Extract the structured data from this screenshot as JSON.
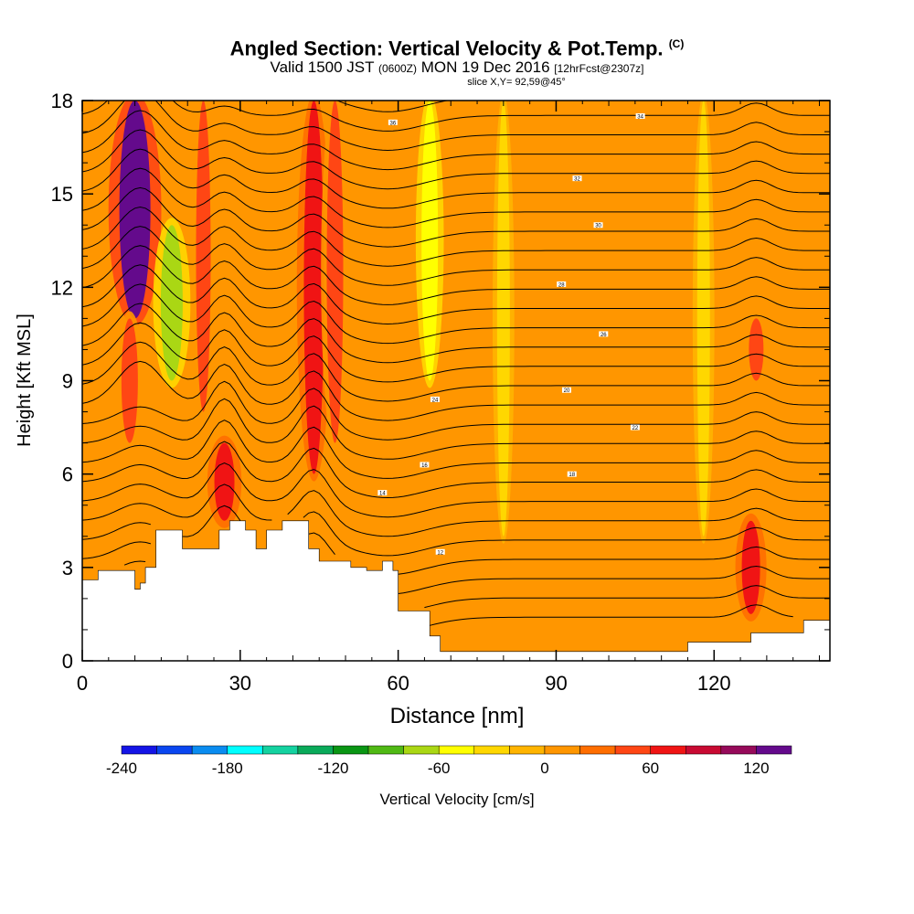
{
  "header": {
    "title": "Angled Section: Vertical Velocity & Pot.Temp.",
    "title_unit": "(C)",
    "valid_prefix": "Valid 1500 JST",
    "valid_utc": "(0600Z)",
    "valid_date": "MON 19 Dec 2016",
    "forecast": "[12hrFcst@2307z]",
    "slice": "slice X,Y= 92,59@45°"
  },
  "chart_data": {
    "type": "heatmap",
    "title": "Angled Section: Vertical Velocity & Pot.Temp. (C)",
    "xlabel": "Distance [nm]",
    "ylabel": "Height [Kft MSL]",
    "xlim": [
      0,
      142
    ],
    "ylim": [
      0,
      18
    ],
    "x_ticks": [
      0,
      30,
      60,
      90,
      120
    ],
    "y_ticks": [
      0,
      3,
      6,
      9,
      12,
      15,
      18
    ],
    "colorbar": {
      "label": "Vertical Velocity [cm/s]",
      "min": -240,
      "max": 140,
      "step": 20,
      "tick_values": [
        -240,
        -180,
        -120,
        -60,
        0,
        60,
        120
      ],
      "colors": [
        "#1414e6",
        "#0a46f0",
        "#0a8cf0",
        "#00ffff",
        "#14d2a0",
        "#0aaa5a",
        "#0a9614",
        "#50b914",
        "#aad714",
        "#ffff00",
        "#ffd700",
        "#ffb400",
        "#ff9600",
        "#ff6e00",
        "#ff4614",
        "#f01414",
        "#c80a32",
        "#960a5a",
        "#640a8c"
      ]
    },
    "velocity_features": [
      {
        "x": 10,
        "y_from": 11,
        "y_to": 18,
        "value": 130
      },
      {
        "x": 9,
        "y_from": 7,
        "y_to": 11,
        "value": 50
      },
      {
        "x": 17,
        "y_from": 9,
        "y_to": 14,
        "value": -80
      },
      {
        "x": 23,
        "y_from": 8,
        "y_to": 18,
        "value": 40
      },
      {
        "x": 27,
        "y_from": 4.5,
        "y_to": 7,
        "value": 70
      },
      {
        "x": 44,
        "y_from": 6,
        "y_to": 18,
        "value": 70
      },
      {
        "x": 48,
        "y_from": 7,
        "y_to": 18,
        "value": 50
      },
      {
        "x": 66,
        "y_from": 9,
        "y_to": 18,
        "value": -50
      },
      {
        "x": 80,
        "y_from": 4,
        "y_to": 18,
        "value": -30
      },
      {
        "x": 118,
        "y_from": 4,
        "y_to": 18,
        "value": -30
      },
      {
        "x": 127,
        "y_from": 1.5,
        "y_to": 4.5,
        "value": 60
      },
      {
        "x": 128,
        "y_from": 9,
        "y_to": 11,
        "value": 40
      }
    ],
    "terrain_kft": [
      [
        0,
        2.6
      ],
      [
        3,
        2.9
      ],
      [
        9,
        2.9
      ],
      [
        10,
        2.3
      ],
      [
        11,
        2.5
      ],
      [
        12,
        3
      ],
      [
        14,
        4.2
      ],
      [
        17,
        4.2
      ],
      [
        19,
        3.6
      ],
      [
        23,
        3.6
      ],
      [
        26,
        4.2
      ],
      [
        28,
        4.5
      ],
      [
        31,
        4.2
      ],
      [
        33,
        3.6
      ],
      [
        35,
        4.2
      ],
      [
        38,
        4.5
      ],
      [
        41,
        4.5
      ],
      [
        43,
        3.6
      ],
      [
        45,
        3.2
      ],
      [
        48,
        3.2
      ],
      [
        51,
        3
      ],
      [
        54,
        2.9
      ],
      [
        57,
        3.2
      ],
      [
        59,
        2.9
      ],
      [
        60,
        1.6
      ],
      [
        64,
        1.6
      ],
      [
        66,
        0.8
      ],
      [
        68,
        0.3
      ],
      [
        113,
        0.3
      ],
      [
        115,
        0.6
      ],
      [
        127,
        0.9
      ],
      [
        137,
        1.3
      ],
      [
        142,
        1.3
      ]
    ],
    "theta_labels": [
      "14",
      "12",
      "16",
      "18",
      "20",
      "22",
      "24",
      "26",
      "28",
      "30",
      "32",
      "34",
      "36"
    ],
    "theta_labels_visible": [
      {
        "text": "16",
        "x": 65,
        "y": 6.3
      },
      {
        "text": "14",
        "x": 57,
        "y": 5.4
      },
      {
        "text": "12",
        "x": 68,
        "y": 3.5
      },
      {
        "text": "18",
        "x": 93,
        "y": 6.0
      },
      {
        "text": "20",
        "x": 92,
        "y": 8.7
      },
      {
        "text": "22",
        "x": 105,
        "y": 7.5
      },
      {
        "text": "24",
        "x": 67,
        "y": 8.4
      },
      {
        "text": "26",
        "x": 99,
        "y": 10.5
      },
      {
        "text": "28",
        "x": 91,
        "y": 12.1
      },
      {
        "text": "30",
        "x": 98,
        "y": 14.0
      },
      {
        "text": "32",
        "x": 94,
        "y": 15.5
      },
      {
        "text": "34",
        "x": 106,
        "y": 17.5
      },
      {
        "text": "36",
        "x": 59,
        "y": 17.3
      }
    ]
  }
}
